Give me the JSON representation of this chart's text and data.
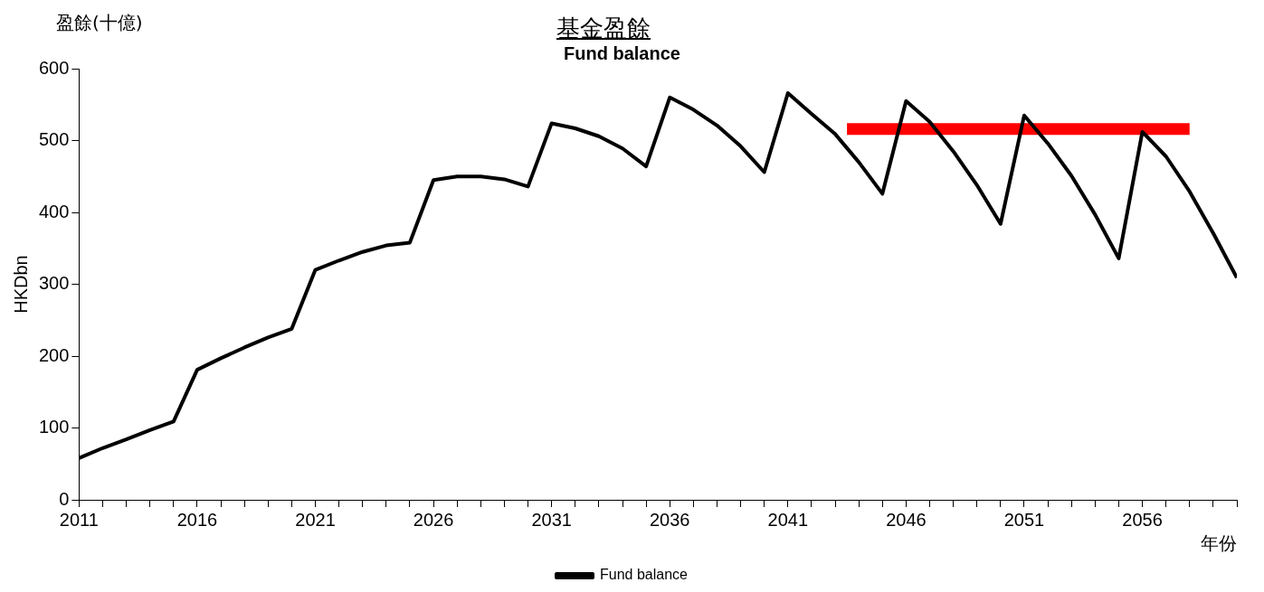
{
  "chart_data": {
    "type": "line",
    "title": "基金盈餘",
    "subtitle": "Fund balance",
    "xlabel": "年份",
    "ylabel": "HKDbn",
    "annotations": [
      "盈餘(十億)"
    ],
    "x": [
      2011,
      2012,
      2013,
      2014,
      2015,
      2016,
      2017,
      2018,
      2019,
      2020,
      2021,
      2022,
      2023,
      2024,
      2025,
      2026,
      2027,
      2028,
      2029,
      2030,
      2031,
      2032,
      2033,
      2034,
      2035,
      2036,
      2037,
      2038,
      2039,
      2040,
      2041,
      2042,
      2043,
      2044,
      2045,
      2046,
      2047,
      2048,
      2049,
      2050,
      2051,
      2052,
      2053,
      2054,
      2055,
      2056,
      2057,
      2058,
      2059,
      2060
    ],
    "series": [
      {
        "name": "Fund balance",
        "color": "#000000",
        "values": [
          58,
          72,
          84,
          97,
          109,
          181,
          197,
          212,
          226,
          238,
          320,
          333,
          345,
          354,
          358,
          445,
          450,
          450,
          446,
          436,
          524,
          517,
          506,
          489,
          464,
          560,
          543,
          521,
          492,
          456,
          566,
          537,
          509,
          470,
          426,
          555,
          526,
          485,
          438,
          384,
          535,
          496,
          451,
          397,
          336,
          512,
          478,
          429,
          371,
          309
        ]
      },
      {
        "type": "line",
        "color": "#ff0000",
        "x": [
          2043.5,
          2058
        ],
        "values": [
          516,
          516
        ]
      }
    ],
    "xlim": [
      2011,
      2060
    ],
    "xticks": [
      2011,
      {
        "value": 2012,
        "label": null
      },
      {
        "value": 2013,
        "label": null
      },
      {
        "value": 2014,
        "label": null
      },
      {
        "value": 2015,
        "label": null
      },
      2016,
      {
        "value": 2017,
        "label": null
      },
      {
        "value": 2018,
        "label": null
      },
      {
        "value": 2019,
        "label": null
      },
      {
        "value": 2020,
        "label": null
      },
      2021,
      {
        "value": 2022,
        "label": null
      },
      {
        "value": 2023,
        "label": null
      },
      {
        "value": 2024,
        "label": null
      },
      {
        "value": 2025,
        "label": null
      },
      2026,
      {
        "value": 2027,
        "label": null
      },
      {
        "value": 2028,
        "label": null
      },
      {
        "value": 2029,
        "label": null
      },
      {
        "value": 2030,
        "label": null
      },
      2031,
      {
        "value": 2032,
        "label": null
      },
      {
        "value": 2033,
        "label": null
      },
      {
        "value": 2034,
        "label": null
      },
      {
        "value": 2035,
        "label": null
      },
      2036,
      {
        "value": 2037,
        "label": null
      },
      {
        "value": 2038,
        "label": null
      },
      {
        "value": 2039,
        "label": null
      },
      {
        "value": 2040,
        "label": null
      },
      2041,
      {
        "value": 2042,
        "label": null
      },
      {
        "value": 2043,
        "label": null
      },
      {
        "value": 2044,
        "label": null
      },
      {
        "value": 2045,
        "label": null
      },
      2046,
      {
        "value": 2047,
        "label": null
      },
      {
        "value": 2048,
        "label": null
      },
      {
        "value": 2049,
        "label": null
      },
      {
        "value": 2050,
        "label": null
      },
      2051,
      {
        "value": 2052,
        "label": null
      },
      {
        "value": 2053,
        "label": null
      },
      {
        "value": 2054,
        "label": null
      },
      {
        "value": 2055,
        "label": null
      },
      2056,
      {
        "value": 2057,
        "label": null
      },
      {
        "value": 2058,
        "label": null
      },
      {
        "value": 2059,
        "label": null
      },
      {
        "value": 2060,
        "label": null
      }
    ],
    "ylim": [
      0,
      600
    ],
    "yticks": [
      0,
      100,
      200,
      300,
      400,
      500,
      600
    ],
    "legend": "bottom",
    "marker": "none",
    "line_style": "solid"
  }
}
